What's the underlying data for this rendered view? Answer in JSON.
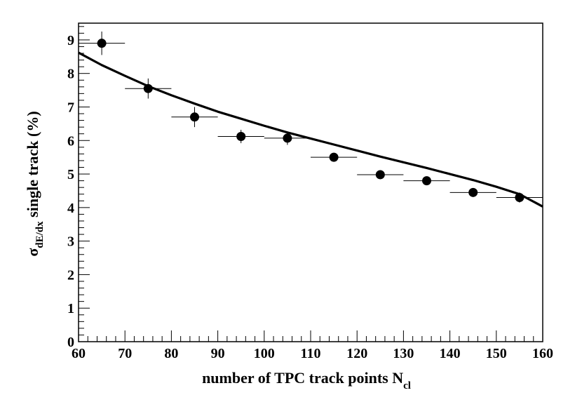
{
  "chart_data": {
    "type": "scatter",
    "xlim": [
      60,
      160
    ],
    "ylim": [
      0,
      9.5
    ],
    "x_ticks": [
      "60",
      "70",
      "80",
      "90",
      "100",
      "110",
      "120",
      "130",
      "140",
      "150",
      "160"
    ],
    "y_ticks": [
      "0",
      "1",
      "2",
      "3",
      "4",
      "5",
      "6",
      "7",
      "8",
      "9"
    ],
    "xlabel": {
      "main": "number of TPC track points N",
      "sub": "cl"
    },
    "ylabel": {
      "symbol": "σ",
      "sub": "dE/dx",
      "rest": " single track (%)"
    },
    "points": [
      {
        "x": 65,
        "y": 8.9,
        "xerr": 5,
        "yerr": 0.35
      },
      {
        "x": 75,
        "y": 7.55,
        "xerr": 5,
        "yerr": 0.3
      },
      {
        "x": 85,
        "y": 6.7,
        "xerr": 5,
        "yerr": 0.3
      },
      {
        "x": 95,
        "y": 6.12,
        "xerr": 5,
        "yerr": 0.2
      },
      {
        "x": 105,
        "y": 6.07,
        "xerr": 5,
        "yerr": 0.2
      },
      {
        "x": 115,
        "y": 5.5,
        "xerr": 5,
        "yerr": 0.1
      },
      {
        "x": 125,
        "y": 4.98,
        "xerr": 5,
        "yerr": 0.05
      },
      {
        "x": 135,
        "y": 4.8,
        "xerr": 5,
        "yerr": 0.05
      },
      {
        "x": 145,
        "y": 4.45,
        "xerr": 5,
        "yerr": 0.05
      },
      {
        "x": 155,
        "y": 4.3,
        "xerr": 5,
        "yerr": 0.15
      }
    ],
    "fit_curve": {
      "x": [
        60,
        65,
        70,
        75,
        80,
        85,
        90,
        95,
        100,
        105,
        110,
        115,
        120,
        125,
        130,
        135,
        140,
        145,
        150,
        155,
        160
      ],
      "y": [
        8.62,
        8.25,
        7.93,
        7.62,
        7.35,
        7.1,
        6.86,
        6.65,
        6.44,
        6.24,
        6.06,
        5.88,
        5.7,
        5.52,
        5.35,
        5.18,
        5.0,
        4.82,
        4.62,
        4.4,
        4.03
      ]
    },
    "grid": false,
    "marker_color": "#000000",
    "line_color": "#000000"
  }
}
